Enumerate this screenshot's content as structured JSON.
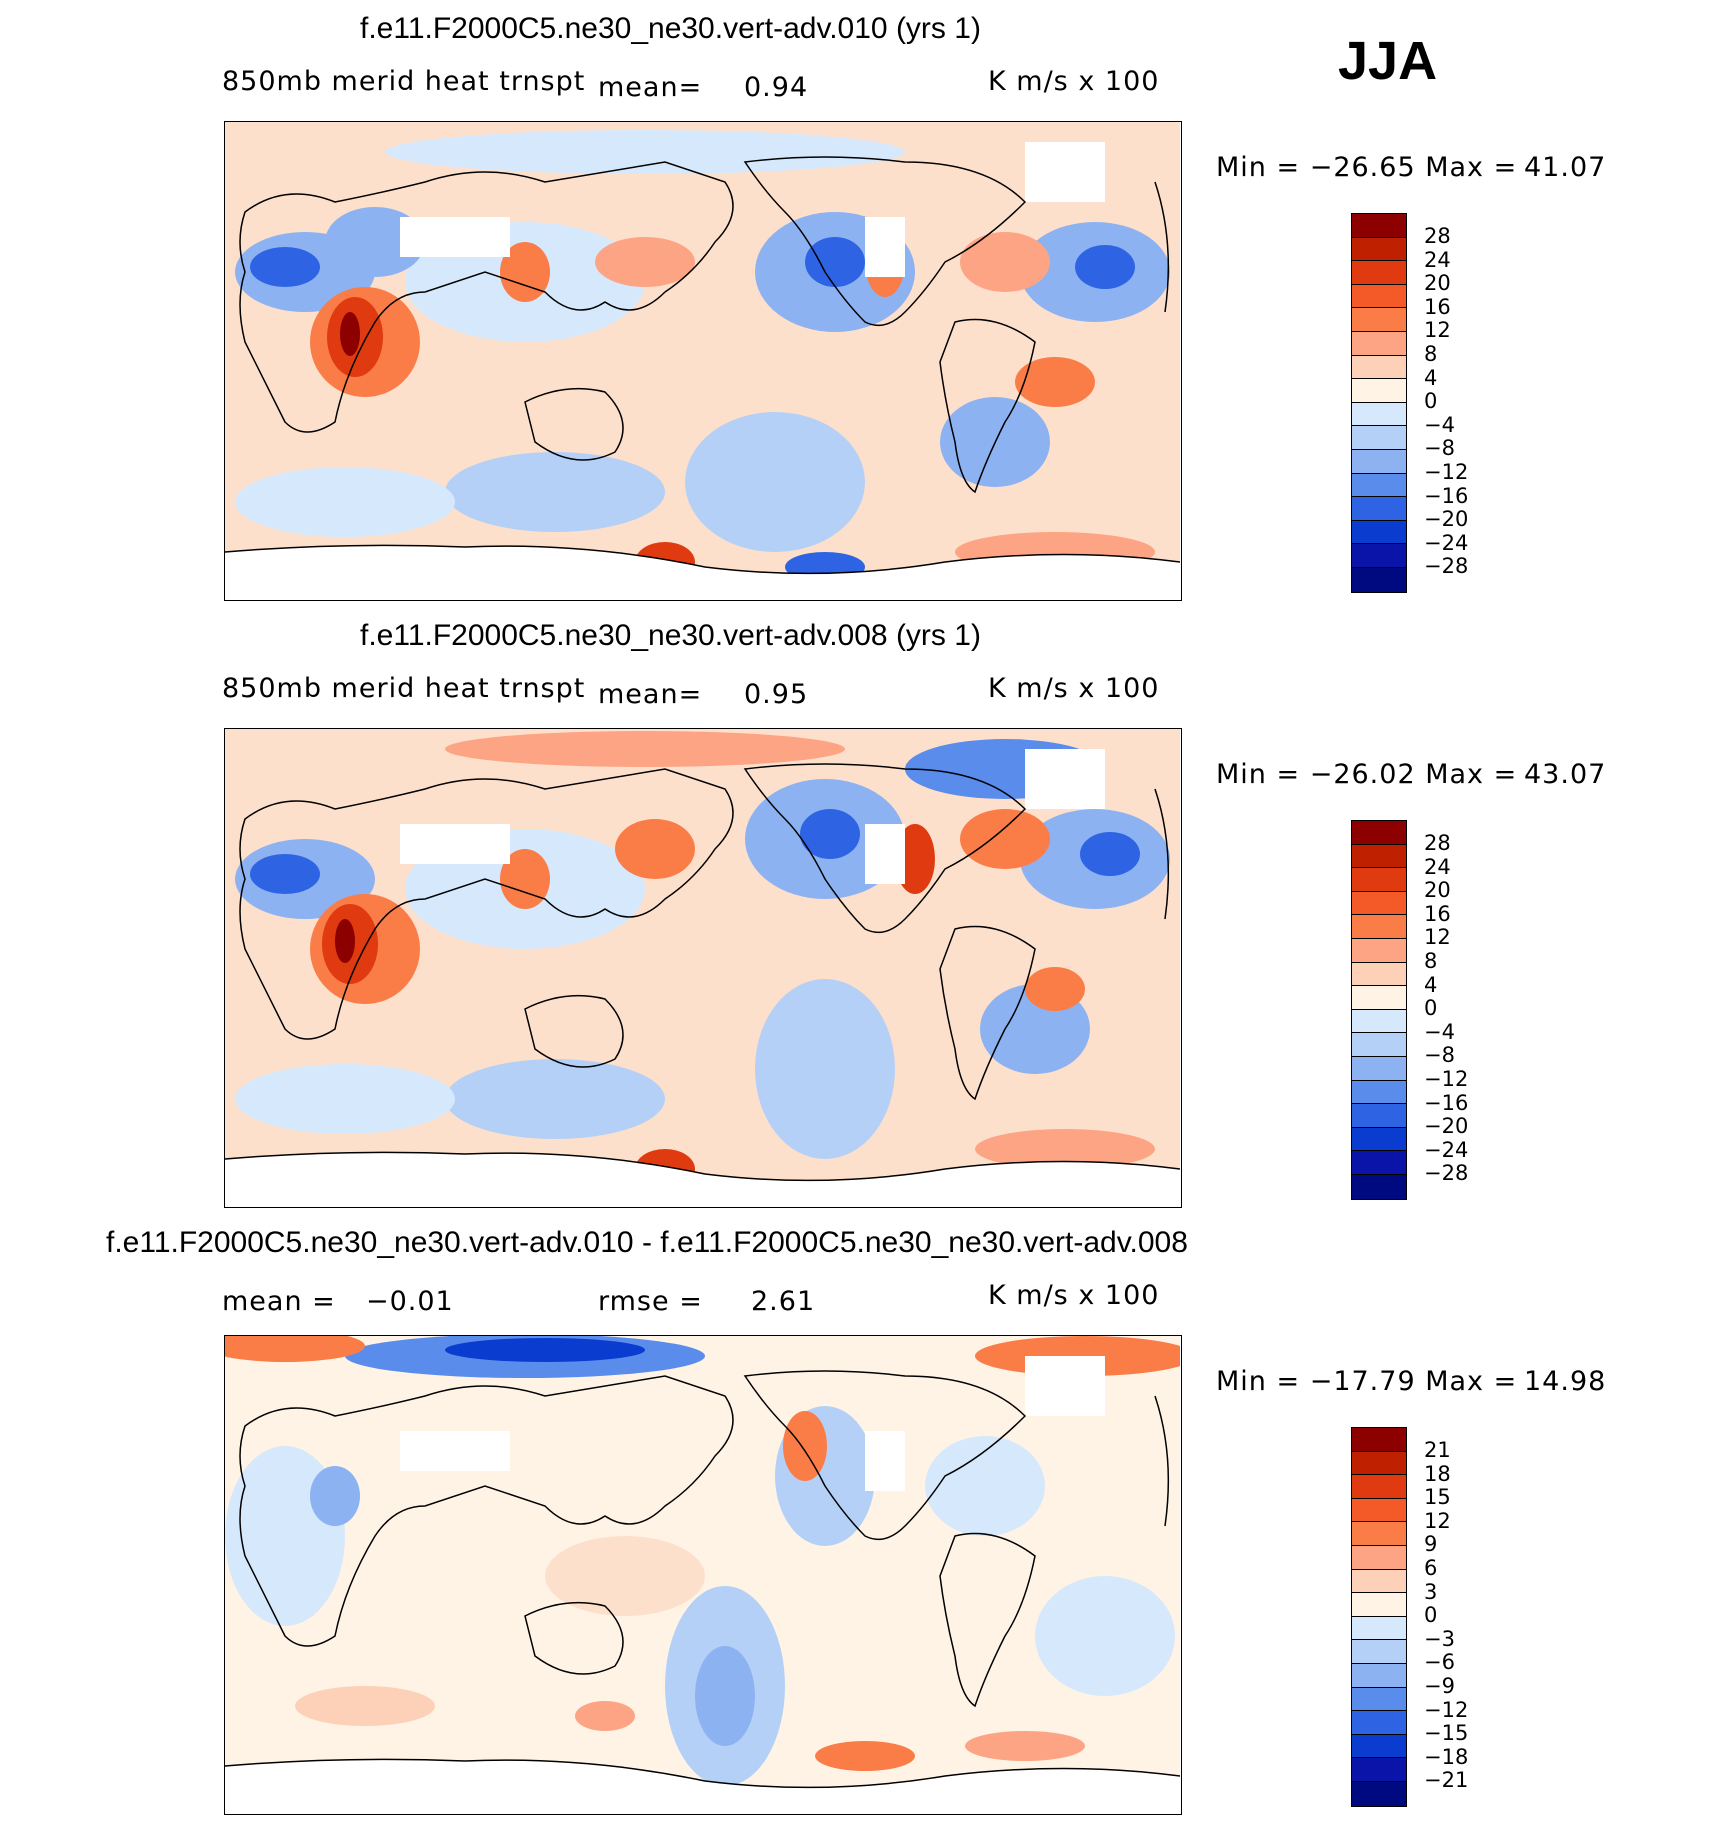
{
  "season": "JJA",
  "panels": [
    {
      "title": "f.e11.F2000C5.ne30_ne30.vert-adv.010 (yrs 1)",
      "left_label": "850mb merid heat trnspt",
      "stat_label": "mean=",
      "stat_value": "0.94",
      "units": "K m/s x 100",
      "minmax": "Min = −26.65 Max =",
      "max_value": "41.07",
      "levels": [
        "28",
        "24",
        "20",
        "16",
        "12",
        "8",
        "4",
        "0",
        "−4",
        "−8",
        "−12",
        "−16",
        "−20",
        "−24",
        "−28"
      ]
    },
    {
      "title": "f.e11.F2000C5.ne30_ne30.vert-adv.008 (yrs 1)",
      "left_label": "850mb merid heat trnspt",
      "stat_label": "mean=",
      "stat_value": "0.95",
      "units": "K m/s x 100",
      "minmax": "Min = −26.02 Max =",
      "max_value": "43.07",
      "levels": [
        "28",
        "24",
        "20",
        "16",
        "12",
        "8",
        "4",
        "0",
        "−4",
        "−8",
        "−12",
        "−16",
        "−20",
        "−24",
        "−28"
      ]
    },
    {
      "title": "f.e11.F2000C5.ne30_ne30.vert-adv.010 - f.e11.F2000C5.ne30_ne30.vert-adv.008",
      "left_label": "mean =",
      "left_value": "−0.01",
      "stat_label": "rmse =",
      "stat_value": "2.61",
      "units": "K m/s x 100",
      "minmax": "Min = −17.79 Max =",
      "max_value": "14.98",
      "levels": [
        "21",
        "18",
        "15",
        "12",
        "9",
        "6",
        "3",
        "0",
        "−3",
        "−6",
        "−9",
        "−12",
        "−15",
        "−18",
        "−21"
      ]
    }
  ],
  "colorbar_colors": [
    "#8c0000",
    "#bf2000",
    "#e03a10",
    "#f45a28",
    "#fa7d48",
    "#fca484",
    "#fdd0b8",
    "#fff3e6",
    "#d6e8fb",
    "#b4d0f7",
    "#8cb2f2",
    "#5a8cec",
    "#2e64e3",
    "#0a3cd0",
    "#0a14a8",
    "#000a80"
  ]
}
